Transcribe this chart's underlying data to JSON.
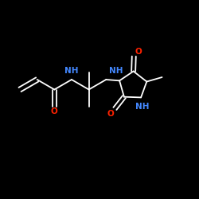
{
  "bg_color": "#000000",
  "bond_color": "#ffffff",
  "N_color": "#4488ff",
  "O_color": "#ff2200",
  "lw": 1.3,
  "figsize": [
    2.5,
    2.5
  ],
  "dpi": 100,
  "xlim": [
    0,
    10
  ],
  "ylim": [
    0,
    10
  ]
}
